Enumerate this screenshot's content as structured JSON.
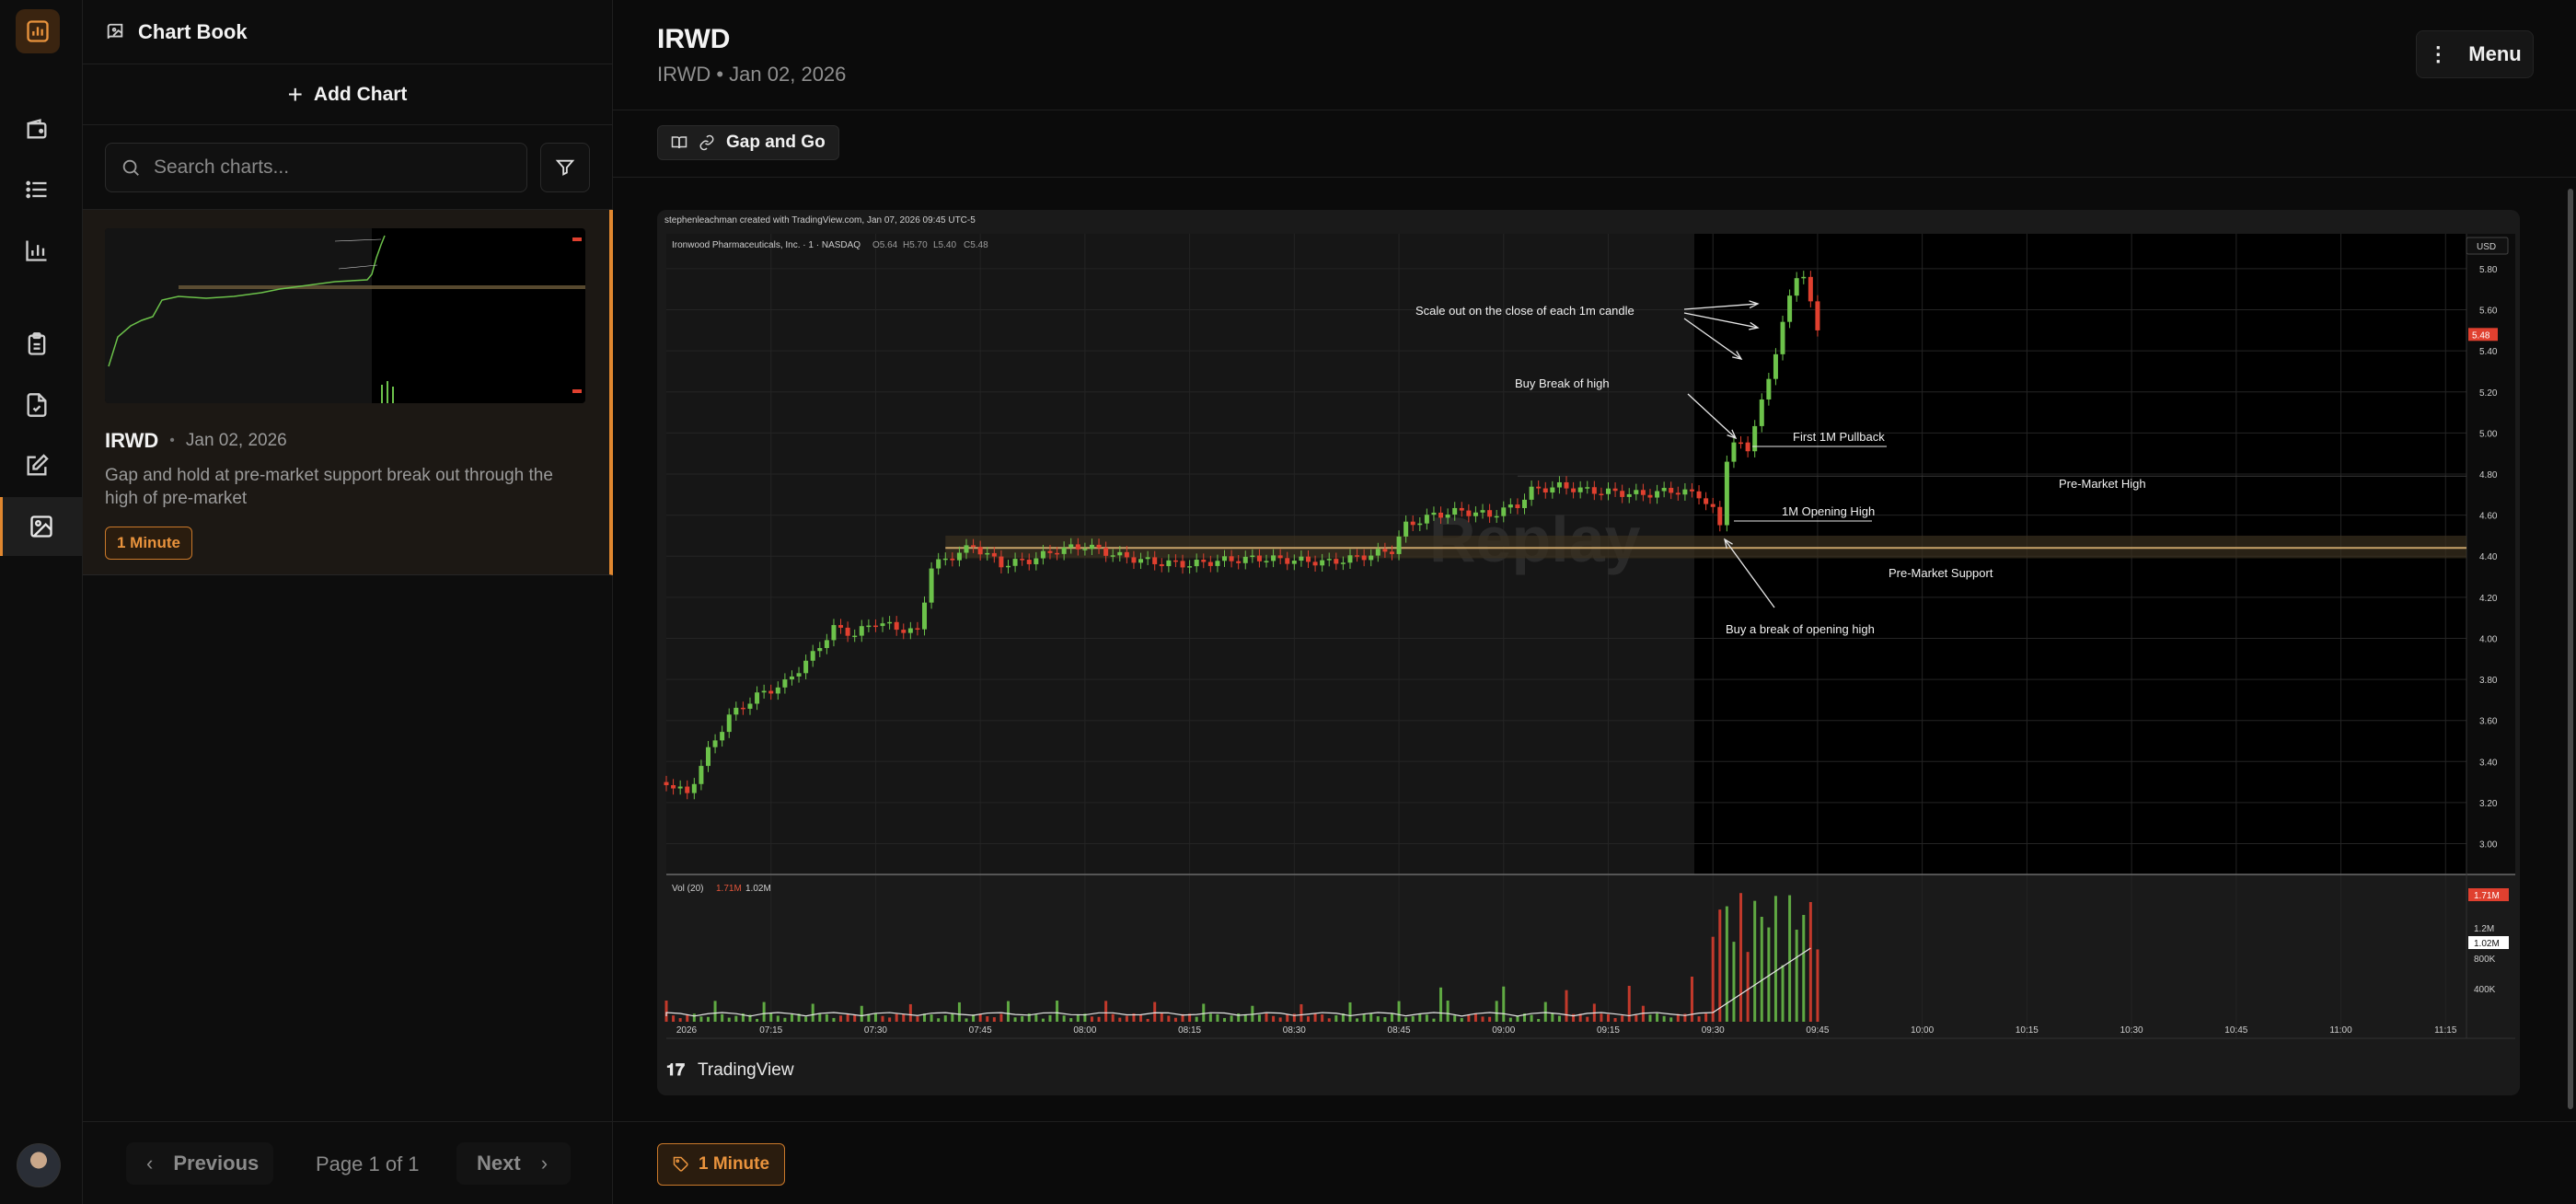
{
  "app": {
    "section_title": "Chart Book"
  },
  "sidebar": {
    "add_chart_label": "Add Chart",
    "search_placeholder": "Search charts...",
    "card": {
      "symbol": "IRWD",
      "separator": "•",
      "date": "Jan 02, 2026",
      "description": "Gap and hold at pre-market support break out through the high of pre-market",
      "tag": "1 Minute"
    },
    "pager": {
      "previous": "Previous",
      "page": "Page 1 of 1",
      "next": "Next"
    }
  },
  "main": {
    "title": "IRWD",
    "subtitle": "IRWD • Jan 02, 2026",
    "menu_label": "Menu",
    "strategy_label": "Gap and Go",
    "footer_tag": "1 Minute"
  },
  "chart": {
    "watermark_top": "stephenleachman created with TradingView.com, Jan 07, 2026 09:45 UTC-5",
    "symbol_line": "Ironwood Pharmaceuticals, Inc. · 1 · NASDAQ",
    "ohlc": {
      "o": "O5.64",
      "h": "H5.70",
      "l": "L5.40",
      "c": "C5.48"
    },
    "currency": "USD",
    "last_price": "5.48",
    "vol_label": "Vol (20)",
    "vol_a": "1.71M",
    "vol_b": "1.02M",
    "vol_axis": [
      "1.71M",
      "1.2M",
      "1.02M",
      "800K",
      "400K"
    ],
    "faint_watermark": "Replay",
    "brand": "TradingView",
    "annotations": {
      "scale_out": "Scale out on the close of each 1m candle",
      "buy_break_high": "Buy Break of high",
      "first_pullback": "First 1M Pullback",
      "premarket_high": "Pre-Market High",
      "opening_high": "1M Opening High",
      "premarket_support": "Pre-Market Support",
      "buy_opening_high": "Buy a break of opening high"
    }
  },
  "chart_data": {
    "type": "candlestick",
    "title": "Ironwood Pharmaceuticals, Inc. · 1 · NASDAQ",
    "y_ticks": [
      "5.80",
      "5.60",
      "5.40",
      "5.20",
      "5.00",
      "4.80",
      "4.60",
      "4.40",
      "4.20",
      "4.00",
      "3.80",
      "3.60",
      "3.40",
      "3.20",
      "3.00"
    ],
    "x_ticks": [
      "2026",
      "07:15",
      "07:30",
      "07:45",
      "08:00",
      "08:15",
      "08:30",
      "08:45",
      "09:00",
      "09:15",
      "09:30",
      "09:45",
      "10:00",
      "10:15",
      "10:30",
      "10:45",
      "11:00",
      "11:15"
    ],
    "ylim": [
      2.85,
      5.97
    ],
    "xlim": [
      "07:00",
      "11:18"
    ],
    "levels": [
      {
        "name": "Pre-Market High",
        "value": 4.79
      },
      {
        "name": "Pre-Market Support",
        "value": 4.44
      },
      {
        "name": "1M Opening High",
        "value": 4.64
      },
      {
        "name": "First 1M Pullback",
        "value": 5.02
      }
    ],
    "close_path": [
      [
        "07:00",
        3.3
      ],
      [
        "07:03",
        3.24
      ],
      [
        "07:06",
        3.45
      ],
      [
        "07:09",
        3.62
      ],
      [
        "07:13",
        3.72
      ],
      [
        "07:17",
        3.78
      ],
      [
        "07:21",
        3.92
      ],
      [
        "07:24",
        4.05
      ],
      [
        "07:27",
        4.02
      ],
      [
        "07:30",
        4.08
      ],
      [
        "07:33",
        4.05
      ],
      [
        "07:36",
        4.03
      ],
      [
        "07:38",
        4.35
      ],
      [
        "07:41",
        4.4
      ],
      [
        "07:44",
        4.45
      ],
      [
        "07:48",
        4.36
      ],
      [
        "07:52",
        4.38
      ],
      [
        "07:56",
        4.43
      ],
      [
        "08:00",
        4.45
      ],
      [
        "08:05",
        4.4
      ],
      [
        "08:10",
        4.37
      ],
      [
        "08:15",
        4.36
      ],
      [
        "08:20",
        4.38
      ],
      [
        "08:25",
        4.39
      ],
      [
        "08:30",
        4.38
      ],
      [
        "08:35",
        4.37
      ],
      [
        "08:40",
        4.4
      ],
      [
        "08:44",
        4.43
      ],
      [
        "08:46",
        4.55
      ],
      [
        "08:50",
        4.6
      ],
      [
        "08:54",
        4.62
      ],
      [
        "08:58",
        4.6
      ],
      [
        "09:02",
        4.65
      ],
      [
        "09:04",
        4.72
      ],
      [
        "09:08",
        4.74
      ],
      [
        "09:12",
        4.72
      ],
      [
        "09:16",
        4.71
      ],
      [
        "09:20",
        4.7
      ],
      [
        "09:24",
        4.72
      ],
      [
        "09:28",
        4.7
      ],
      [
        "09:30",
        4.62
      ],
      [
        "09:31",
        4.55
      ],
      [
        "09:32",
        4.88
      ],
      [
        "09:33",
        4.95
      ],
      [
        "09:35",
        4.92
      ],
      [
        "09:36",
        5.05
      ],
      [
        "09:37",
        5.15
      ],
      [
        "09:38",
        5.25
      ],
      [
        "09:39",
        5.4
      ],
      [
        "09:40",
        5.55
      ],
      [
        "09:41",
        5.65
      ],
      [
        "09:42",
        5.75
      ],
      [
        "09:43",
        5.78
      ],
      [
        "09:44",
        5.64
      ],
      [
        "09:45",
        5.48
      ]
    ]
  }
}
